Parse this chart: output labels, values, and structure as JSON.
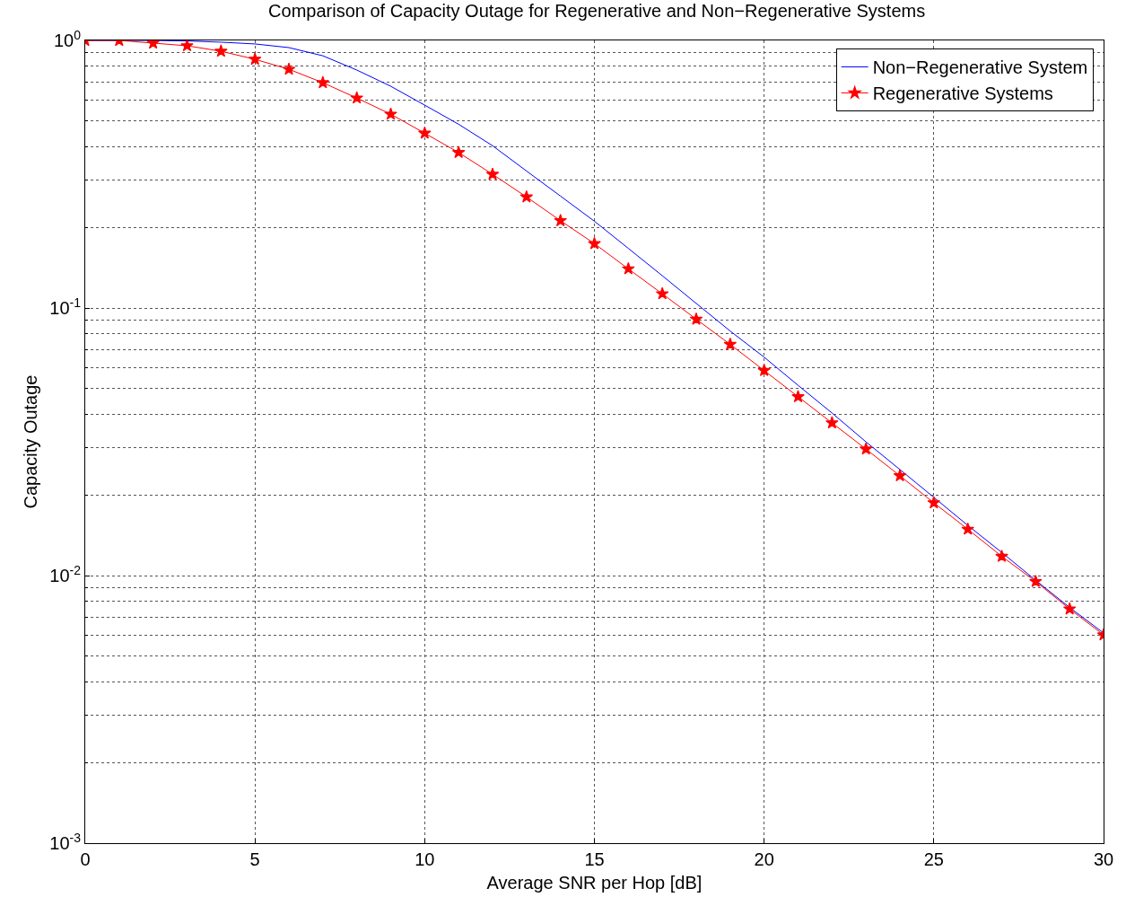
{
  "chart_data": {
    "type": "line",
    "title": "Comparison of Capacity Outage for Regenerative and Non−Regenerative Systems",
    "xlabel": "Average SNR per Hop [dB]",
    "ylabel": "Capacity Outage",
    "x": [
      0,
      1,
      2,
      3,
      4,
      5,
      6,
      7,
      8,
      9,
      10,
      11,
      12,
      13,
      14,
      15,
      16,
      17,
      18,
      19,
      20,
      21,
      22,
      23,
      24,
      25,
      26,
      27,
      28,
      29,
      30
    ],
    "series": [
      {
        "name": "Non−Regenerative System",
        "color": "#0000ff",
        "marker": "none",
        "values": [
          1.0,
          1.0,
          1.0,
          0.995,
          0.985,
          0.97,
          0.94,
          0.876,
          0.775,
          0.674,
          0.573,
          0.486,
          0.404,
          0.325,
          0.262,
          0.211,
          0.167,
          0.132,
          0.104,
          0.082,
          0.0655,
          0.0514,
          0.0405,
          0.0316,
          0.0249,
          0.0196,
          0.0154,
          0.0122,
          0.0096,
          0.0076,
          0.0061
        ]
      },
      {
        "name": "Regenerative Systems",
        "color": "#ff0000",
        "marker": "star",
        "values": [
          1.0,
          1.0,
          0.977,
          0.955,
          0.911,
          0.85,
          0.78,
          0.695,
          0.609,
          0.53,
          0.45,
          0.381,
          0.316,
          0.26,
          0.212,
          0.174,
          0.14,
          0.113,
          0.0908,
          0.0731,
          0.0584,
          0.0466,
          0.0372,
          0.0297,
          0.0236,
          0.0187,
          0.0149,
          0.0118,
          0.0095,
          0.0075,
          0.006
        ]
      }
    ],
    "log": "y",
    "xlim": [
      0,
      30
    ],
    "xticks": [
      0,
      5,
      10,
      15,
      20,
      25,
      30
    ],
    "ylim": [
      0.001,
      1
    ],
    "yticks": [
      {
        "value": 0.001,
        "label": "10$^{-3}$"
      },
      {
        "value": 0.01,
        "label": "10$^{-2}$"
      },
      {
        "value": 0.1,
        "label": "10$^{-1}$"
      },
      {
        "value": 1,
        "label": "10$^{0}$"
      }
    ],
    "grid": true,
    "legend": "top right",
    "line_style": "solid"
  }
}
